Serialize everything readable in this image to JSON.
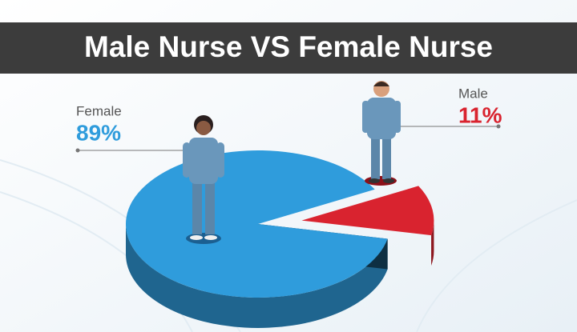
{
  "chart_data": {
    "type": "pie",
    "title": "Male Nurse VS Female Nurse",
    "categories": [
      "Female",
      "Male"
    ],
    "values": [
      89,
      11
    ],
    "value_labels": [
      "89%",
      "11%"
    ],
    "colors": [
      "#2f9cdc",
      "#d9232f"
    ]
  }
}
